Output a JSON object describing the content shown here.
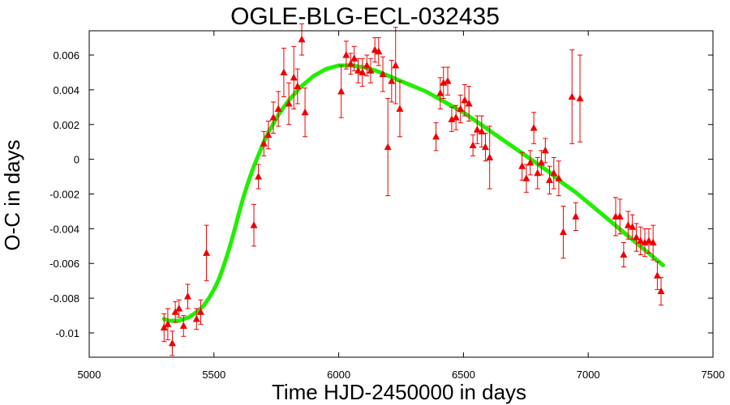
{
  "chart_data": {
    "type": "scatter",
    "title": "OGLE-BLG-ECL-032435",
    "xlabel": "Time HJD-2450000 in days",
    "ylabel": "O-C in days",
    "xlim": [
      5000,
      7500
    ],
    "ylim": [
      -0.0114,
      0.0074
    ],
    "xticks": [
      5000,
      5500,
      6000,
      6500,
      7000,
      7500
    ],
    "xtick_labels": [
      "5000",
      "5500",
      "6000",
      "6500",
      "7000",
      "7500"
    ],
    "yticks": [
      0.006,
      0.004,
      0.002,
      0,
      -0.002,
      -0.004,
      -0.006,
      -0.008,
      -0.01
    ],
    "ytick_labels": [
      "0.006",
      "0.004",
      "0.002",
      "0",
      "-0.002",
      "-0.004",
      "-0.006",
      "-0.008",
      "-0.01"
    ],
    "grid": false,
    "series": [
      {
        "kind": "points_with_errorbars",
        "color": "#ee0000",
        "marker": "triangle",
        "points": [
          {
            "x": 5300,
            "y": -0.0097,
            "err": 0.0008
          },
          {
            "x": 5315,
            "y": -0.0095,
            "err": 0.0009
          },
          {
            "x": 5333,
            "y": -0.0106,
            "err": 0.0007
          },
          {
            "x": 5345,
            "y": -0.0088,
            "err": 0.0006
          },
          {
            "x": 5360,
            "y": -0.0086,
            "err": 0.0005
          },
          {
            "x": 5378,
            "y": -0.0096,
            "err": 0.0006
          },
          {
            "x": 5395,
            "y": -0.0079,
            "err": 0.0007
          },
          {
            "x": 5430,
            "y": -0.0092,
            "err": 0.0006
          },
          {
            "x": 5447,
            "y": -0.0088,
            "err": 0.0007
          },
          {
            "x": 5470,
            "y": -0.0054,
            "err": 0.0016
          },
          {
            "x": 5660,
            "y": -0.0038,
            "err": 0.0012
          },
          {
            "x": 5678,
            "y": -0.001,
            "err": 0.0007
          },
          {
            "x": 5700,
            "y": 0.0009,
            "err": 0.0007
          },
          {
            "x": 5718,
            "y": 0.0014,
            "err": 0.0008
          },
          {
            "x": 5738,
            "y": 0.0024,
            "err": 0.0009
          },
          {
            "x": 5758,
            "y": 0.0029,
            "err": 0.001
          },
          {
            "x": 5780,
            "y": 0.005,
            "err": 0.0014
          },
          {
            "x": 5800,
            "y": 0.0032,
            "err": 0.0012
          },
          {
            "x": 5820,
            "y": 0.0047,
            "err": 0.0018
          },
          {
            "x": 5835,
            "y": 0.0042,
            "err": 0.001
          },
          {
            "x": 5852,
            "y": 0.0069,
            "err": 0.0009
          },
          {
            "x": 5865,
            "y": 0.0027,
            "err": 0.0014
          },
          {
            "x": 6010,
            "y": 0.0039,
            "err": 0.0015
          },
          {
            "x": 6030,
            "y": 0.006,
            "err": 0.0008
          },
          {
            "x": 6048,
            "y": 0.0055,
            "err": 0.0006
          },
          {
            "x": 6062,
            "y": 0.0058,
            "err": 0.0007
          },
          {
            "x": 6078,
            "y": 0.0051,
            "err": 0.0007
          },
          {
            "x": 6095,
            "y": 0.005,
            "err": 0.0008
          },
          {
            "x": 6113,
            "y": 0.0054,
            "err": 0.0006
          },
          {
            "x": 6128,
            "y": 0.0051,
            "err": 0.0007
          },
          {
            "x": 6145,
            "y": 0.0063,
            "err": 0.0007
          },
          {
            "x": 6160,
            "y": 0.0062,
            "err": 0.0008
          },
          {
            "x": 6177,
            "y": 0.0049,
            "err": 0.001
          },
          {
            "x": 6197,
            "y": 0.0007,
            "err": 0.0028
          },
          {
            "x": 6212,
            "y": 0.0045,
            "err": 0.0012
          },
          {
            "x": 6228,
            "y": 0.0054,
            "err": 0.0022
          },
          {
            "x": 6245,
            "y": 0.0029,
            "err": 0.0016
          },
          {
            "x": 6390,
            "y": 0.0013,
            "err": 0.0008
          },
          {
            "x": 6407,
            "y": 0.0038,
            "err": 0.0009
          },
          {
            "x": 6420,
            "y": 0.0044,
            "err": 0.0009
          },
          {
            "x": 6437,
            "y": 0.0045,
            "err": 0.0008
          },
          {
            "x": 6453,
            "y": 0.0023,
            "err": 0.0007
          },
          {
            "x": 6470,
            "y": 0.0024,
            "err": 0.0007
          },
          {
            "x": 6488,
            "y": 0.0029,
            "err": 0.0008
          },
          {
            "x": 6505,
            "y": 0.0034,
            "err": 0.0009
          },
          {
            "x": 6522,
            "y": 0.0032,
            "err": 0.001
          },
          {
            "x": 6538,
            "y": 0.0008,
            "err": 0.0006
          },
          {
            "x": 6555,
            "y": 0.0017,
            "err": 0.0008
          },
          {
            "x": 6573,
            "y": 0.0016,
            "err": 0.0009
          },
          {
            "x": 6588,
            "y": 0.0007,
            "err": 0.0008
          },
          {
            "x": 6605,
            "y": 0.0001,
            "err": 0.0018
          },
          {
            "x": 6735,
            "y": -0.0004,
            "err": 0.0008
          },
          {
            "x": 6752,
            "y": -0.0011,
            "err": 0.0008
          },
          {
            "x": 6768,
            "y": -0.0002,
            "err": 0.0007
          },
          {
            "x": 6782,
            "y": 0.0018,
            "err": 0.0009
          },
          {
            "x": 6797,
            "y": -0.0008,
            "err": 0.0009
          },
          {
            "x": 6812,
            "y": -0.0002,
            "err": 0.0007
          },
          {
            "x": 6828,
            "y": 0.0005,
            "err": 0.0007
          },
          {
            "x": 6845,
            "y": -0.0012,
            "err": 0.0008
          },
          {
            "x": 6862,
            "y": -0.0008,
            "err": 0.0009
          },
          {
            "x": 6882,
            "y": -0.0011,
            "err": 0.001
          },
          {
            "x": 6900,
            "y": -0.0042,
            "err": 0.0015
          },
          {
            "x": 6935,
            "y": 0.0036,
            "err": 0.0027
          },
          {
            "x": 6950,
            "y": -0.0033,
            "err": 0.0008
          },
          {
            "x": 6967,
            "y": 0.0035,
            "err": 0.0025
          },
          {
            "x": 7110,
            "y": -0.0033,
            "err": 0.0011
          },
          {
            "x": 7127,
            "y": -0.0033,
            "err": 0.001
          },
          {
            "x": 7142,
            "y": -0.0055,
            "err": 0.0007
          },
          {
            "x": 7160,
            "y": -0.0038,
            "err": 0.0008
          },
          {
            "x": 7177,
            "y": -0.0039,
            "err": 0.0007
          },
          {
            "x": 7193,
            "y": -0.0045,
            "err": 0.0008
          },
          {
            "x": 7210,
            "y": -0.0047,
            "err": 0.0008
          },
          {
            "x": 7227,
            "y": -0.0048,
            "err": 0.0008
          },
          {
            "x": 7243,
            "y": -0.0047,
            "err": 0.0007
          },
          {
            "x": 7260,
            "y": -0.0048,
            "err": 0.001
          },
          {
            "x": 7277,
            "y": -0.0067,
            "err": 0.0008
          },
          {
            "x": 7292,
            "y": -0.0076,
            "err": 0.0008
          }
        ]
      },
      {
        "kind": "fit_curve",
        "color": "#22ee00",
        "x": [
          5300,
          5320,
          5340,
          5360,
          5380,
          5400,
          5420,
          5440,
          5460,
          5480,
          5500,
          5520,
          5540,
          5560,
          5580,
          5600,
          5620,
          5640,
          5660,
          5680,
          5700,
          5720,
          5740,
          5760,
          5780,
          5800,
          5850,
          5900,
          5950,
          6000,
          6050,
          6100,
          6150,
          6200,
          6250,
          6300,
          6350,
          6400,
          6450,
          6500,
          6550,
          6600,
          6650,
          6700,
          6750,
          6800,
          6850,
          6900,
          6950,
          7000,
          7050,
          7100,
          7150,
          7200,
          7250,
          7300
        ],
        "y": [
          -0.0092,
          -0.0093,
          -0.0093,
          -0.0093,
          -0.0092,
          -0.0091,
          -0.0089,
          -0.0087,
          -0.0084,
          -0.008,
          -0.0075,
          -0.0069,
          -0.0061,
          -0.0052,
          -0.0042,
          -0.0031,
          -0.0021,
          -0.0012,
          -0.0004,
          0.0003,
          0.001,
          0.0016,
          0.0021,
          0.0026,
          0.003,
          0.0034,
          0.0042,
          0.0048,
          0.0052,
          0.0054,
          0.0054,
          0.0053,
          0.0051,
          0.0048,
          0.0045,
          0.0042,
          0.0039,
          0.0035,
          0.0031,
          0.0027,
          0.0022,
          0.0017,
          0.0012,
          0.0007,
          0.0002,
          -0.0003,
          -0.0008,
          -0.0014,
          -0.0019,
          -0.0025,
          -0.0031,
          -0.0037,
          -0.0043,
          -0.0049,
          -0.0055,
          -0.0061
        ]
      }
    ]
  }
}
